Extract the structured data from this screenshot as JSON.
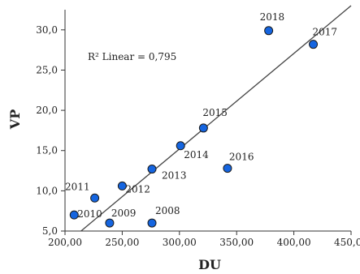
{
  "chart_data": {
    "type": "scatter",
    "title": "",
    "xlabel": "DU",
    "ylabel": "VP",
    "xlim": [
      200,
      450
    ],
    "ylim": [
      5,
      32.5
    ],
    "x_ticks": [
      200,
      250,
      300,
      350,
      400,
      450
    ],
    "x_tick_labels": [
      "200,00",
      "250,00",
      "300,00",
      "350,00",
      "400,00",
      "450,00"
    ],
    "y_ticks": [
      5,
      10,
      15,
      20,
      25,
      30
    ],
    "y_tick_labels": [
      "5,0",
      "10,0",
      "15,0",
      "20,0",
      "25,0",
      "30,0"
    ],
    "grid": false,
    "points": [
      {
        "label": "2008",
        "x": 276,
        "y": 6.0
      },
      {
        "label": "2009",
        "x": 239,
        "y": 6.0
      },
      {
        "label": "2010",
        "x": 208,
        "y": 7.0
      },
      {
        "label": "2011",
        "x": 226,
        "y": 9.1
      },
      {
        "label": "2012",
        "x": 250,
        "y": 10.6
      },
      {
        "label": "2013",
        "x": 276,
        "y": 12.7
      },
      {
        "label": "2014",
        "x": 301,
        "y": 15.6
      },
      {
        "label": "2015",
        "x": 321,
        "y": 17.8
      },
      {
        "label": "2016",
        "x": 342,
        "y": 12.8
      },
      {
        "label": "2017",
        "x": 417,
        "y": 28.2
      },
      {
        "label": "2018",
        "x": 378,
        "y": 29.9
      }
    ],
    "fit_line": {
      "type": "linear",
      "x": [
        214,
        450
      ],
      "y": [
        5.0,
        33.0
      ]
    },
    "annotation": "R² Linear = 0,795",
    "point_color": "#1565e0",
    "point_stroke": "#1a1a1a",
    "line_color": "#444444"
  }
}
